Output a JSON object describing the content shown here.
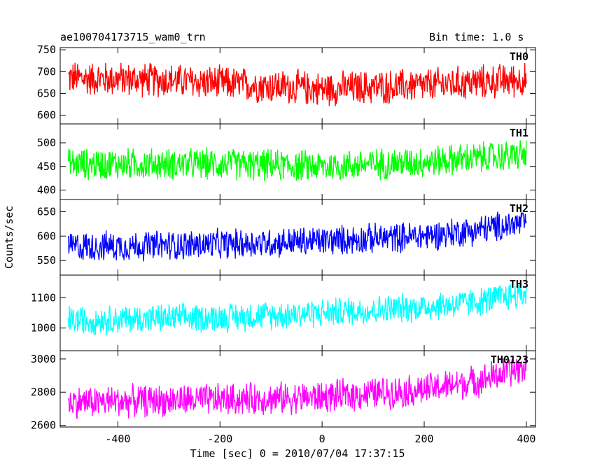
{
  "header": {
    "left": "ae100704173715_wam0_trn",
    "right": "Bin time: 1.0 s"
  },
  "chart_data": {
    "type": "line",
    "title": "ae100704173715_wam0_trn",
    "subtitle": "Bin time: 1.0 s",
    "xlabel": "Time [sec] 0 = 2010/07/04 17:37:15",
    "ylabel": "Counts/sec",
    "xlim": [
      -513,
      418
    ],
    "x_ticks": [
      -400,
      -200,
      0,
      200,
      400
    ],
    "x_range": [
      -497,
      400
    ],
    "bin_time_s": 1.0,
    "grid": false,
    "panels": [
      {
        "name": "TH0",
        "color": "#ff0000",
        "ylim": [
          580,
          755
        ],
        "y_ticks": [
          600,
          650,
          700,
          750
        ],
        "trend": [
          [
            -497,
            685
          ],
          [
            -300,
            680
          ],
          [
            0,
            660
          ],
          [
            200,
            668
          ],
          [
            400,
            682
          ]
        ],
        "noise_amplitude": 45
      },
      {
        "name": "TH1",
        "color": "#00ff00",
        "ylim": [
          380,
          540
        ],
        "y_ticks": [
          400,
          450,
          500
        ],
        "trend": [
          [
            -497,
            455
          ],
          [
            -200,
            455
          ],
          [
            0,
            450
          ],
          [
            200,
            460
          ],
          [
            400,
            475
          ]
        ],
        "noise_amplitude": 38
      },
      {
        "name": "TH2",
        "color": "#0000ff",
        "ylim": [
          520,
          675
        ],
        "y_ticks": [
          550,
          600,
          650
        ],
        "trend": [
          [
            -497,
            578
          ],
          [
            -200,
            583
          ],
          [
            0,
            590
          ],
          [
            200,
            600
          ],
          [
            300,
            612
          ],
          [
            400,
            628
          ]
        ],
        "noise_amplitude": 35
      },
      {
        "name": "TH3",
        "color": "#00ffff",
        "ylim": [
          925,
          1175
        ],
        "y_ticks": [
          1000,
          1100
        ],
        "trend": [
          [
            -497,
            1025
          ],
          [
            -200,
            1035
          ],
          [
            0,
            1050
          ],
          [
            200,
            1070
          ],
          [
            300,
            1085
          ],
          [
            400,
            1115
          ]
        ],
        "noise_amplitude": 55
      },
      {
        "name": "TH0123",
        "color": "#ff00ff",
        "ylim": [
          2590,
          3050
        ],
        "y_ticks": [
          2600,
          2800,
          3000
        ],
        "trend": [
          [
            -497,
            2740
          ],
          [
            -200,
            2755
          ],
          [
            0,
            2770
          ],
          [
            200,
            2815
          ],
          [
            300,
            2865
          ],
          [
            400,
            2950
          ]
        ],
        "noise_amplitude": 110
      }
    ]
  }
}
